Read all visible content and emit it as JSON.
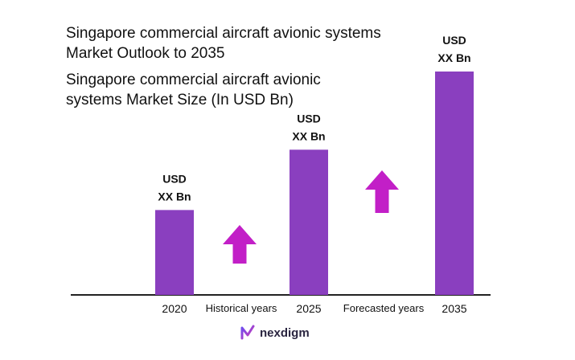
{
  "header": {
    "title_line1": "Singapore commercial aircraft avionic systems",
    "title_line2": "Market Outlook to 2035",
    "subtitle_line1": "Singapore commercial aircraft avionic",
    "subtitle_line2": "systems Market Size (In USD Bn)"
  },
  "brand": {
    "name": "nexdigm",
    "icon": "nexdigm-logo-icon"
  },
  "colors": {
    "bar": "#8a3fbf",
    "arrow": "#c21fc7",
    "axis": "#222222"
  },
  "chart_data": {
    "type": "bar",
    "categories": [
      "2020",
      "2025",
      "2035"
    ],
    "values": [
      0.38,
      0.65,
      1.0
    ],
    "value_note": "relative heights only; no axis values printed",
    "data_labels": [
      [
        "USD",
        "XX Bn"
      ],
      [
        "USD",
        "XX Bn"
      ],
      [
        "USD",
        "XX Bn"
      ]
    ],
    "period_labels": [
      "Historical years",
      "Forecasted years"
    ],
    "arrows": [
      "up",
      "up"
    ],
    "grid": false,
    "legend": "none"
  }
}
